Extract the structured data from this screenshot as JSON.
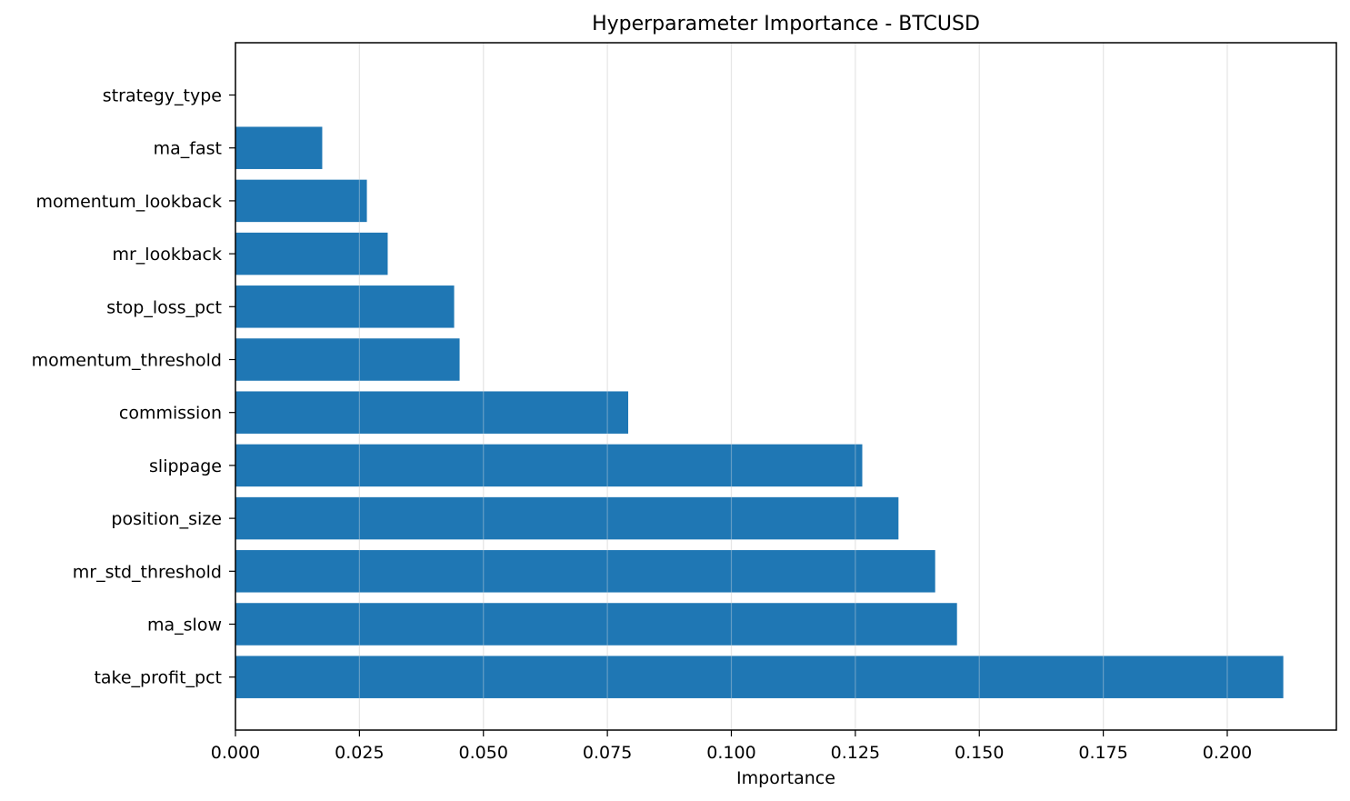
{
  "chart_data": {
    "type": "bar",
    "orientation": "horizontal",
    "title": "Hyperparameter Importance - BTCUSD",
    "xlabel": "Importance",
    "ylabel": "",
    "categories": [
      "strategy_type",
      "ma_fast",
      "momentum_lookback",
      "mr_lookback",
      "stop_loss_pct",
      "momentum_threshold",
      "commission",
      "slippage",
      "position_size",
      "mr_std_threshold",
      "ma_slow",
      "take_profit_pct"
    ],
    "values": [
      0.0,
      0.0175,
      0.0265,
      0.0307,
      0.0441,
      0.0452,
      0.0792,
      0.1264,
      0.1337,
      0.1411,
      0.1455,
      0.2113
    ],
    "xlim": [
      0,
      0.222
    ],
    "xticks": [
      0.0,
      0.025,
      0.05,
      0.075,
      0.1,
      0.125,
      0.15,
      0.175,
      0.2
    ],
    "xtick_labels": [
      "0.000",
      "0.025",
      "0.050",
      "0.075",
      "0.100",
      "0.125",
      "0.150",
      "0.175",
      "0.200"
    ],
    "grid": "x",
    "legend": "none",
    "colors": {
      "bar": "#1f77b4",
      "grid": "#e6e6e6",
      "axis": "#000000",
      "background": "#ffffff"
    }
  }
}
